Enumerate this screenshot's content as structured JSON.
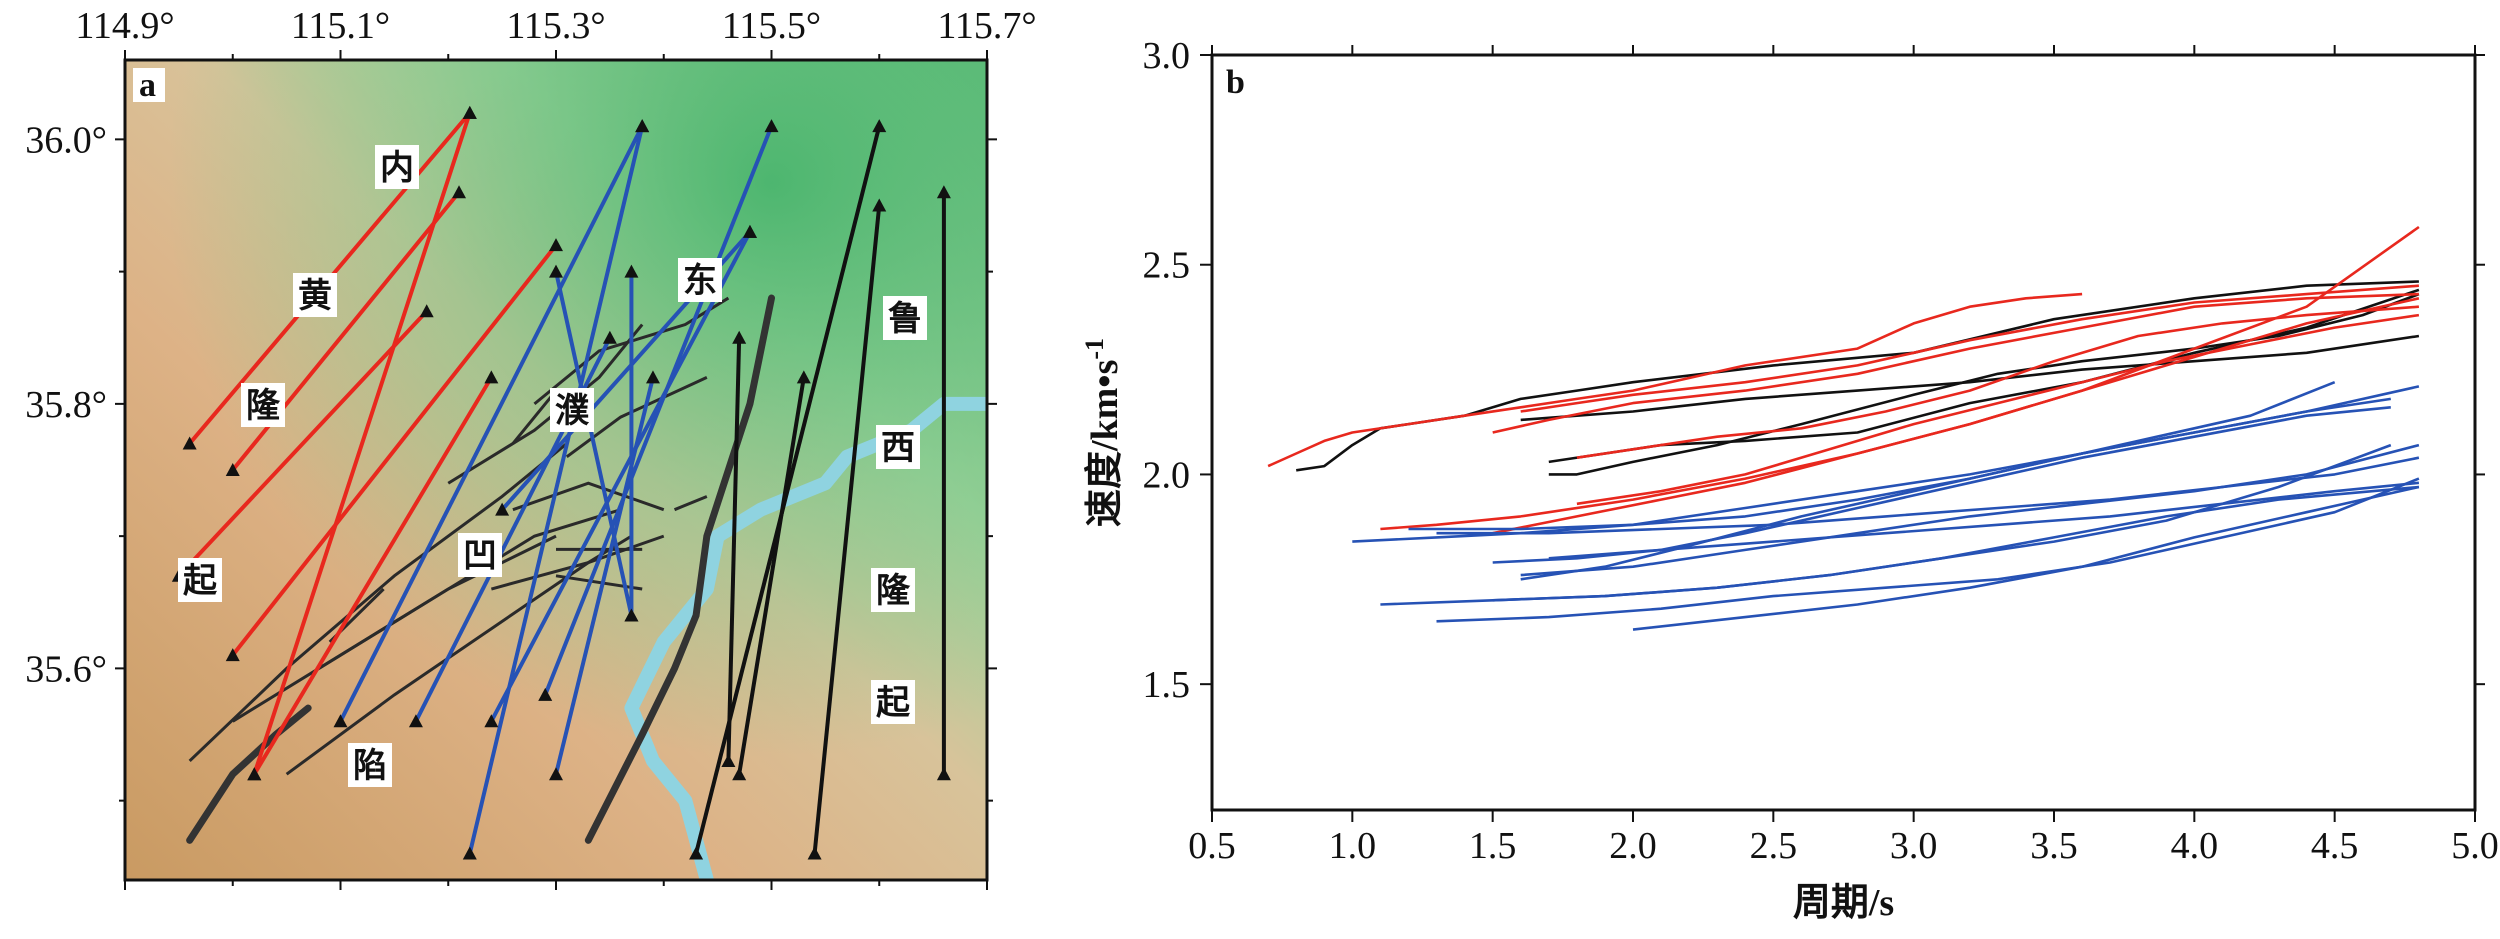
{
  "chart_data": [
    {
      "type": "map",
      "panel_label": "a",
      "x_ticks": [
        "114.9°",
        "115.1°",
        "115.3°",
        "115.5°",
        "115.7°"
      ],
      "y_ticks": [
        "36.0°",
        "35.8°",
        "35.6°"
      ],
      "xlim": [
        114.9,
        115.7
      ],
      "ylim": [
        35.44,
        36.06
      ],
      "region_labels": [
        "内",
        "黄",
        "隆",
        "起",
        "东",
        "濮",
        "凹",
        "陷",
        "鲁",
        "西",
        "隆",
        "起"
      ],
      "colors": {
        "red_paths": "#e8281e",
        "blue_paths": "#2652b5",
        "black_paths": "#111111",
        "faults": "#2a2a2a",
        "river": "#8fd3e0"
      },
      "paths": {
        "red": [
          [
            [
              114.96,
              35.77
            ],
            [
              115.22,
              36.02
            ]
          ],
          [
            [
              115.0,
              35.75
            ],
            [
              115.21,
              35.96
            ]
          ],
          [
            [
              114.95,
              35.67
            ],
            [
              115.18,
              35.87
            ]
          ],
          [
            [
              115.0,
              35.61
            ],
            [
              115.3,
              35.92
            ]
          ],
          [
            [
              115.02,
              35.52
            ],
            [
              115.22,
              36.02
            ]
          ],
          [
            [
              115.02,
              35.52
            ],
            [
              115.24,
              35.82
            ]
          ]
        ],
        "blue": [
          [
            [
              115.1,
              35.56
            ],
            [
              115.38,
              36.01
            ]
          ],
          [
            [
              115.17,
              35.56
            ],
            [
              115.35,
              35.85
            ]
          ],
          [
            [
              115.22,
              35.46
            ],
            [
              115.38,
              36.01
            ]
          ],
          [
            [
              115.24,
              35.56
            ],
            [
              115.48,
              35.93
            ]
          ],
          [
            [
              115.29,
              35.58
            ],
            [
              115.5,
              36.01
            ]
          ],
          [
            [
              115.3,
              35.9
            ],
            [
              115.37,
              35.64
            ]
          ],
          [
            [
              115.3,
              35.52
            ],
            [
              115.39,
              35.82
            ]
          ],
          [
            [
              115.37,
              35.64
            ],
            [
              115.37,
              35.9
            ]
          ],
          [
            [
              115.25,
              35.72
            ],
            [
              115.48,
              35.93
            ]
          ]
        ],
        "black": [
          [
            [
              115.43,
              35.46
            ],
            [
              115.6,
              36.01
            ]
          ],
          [
            [
              115.54,
              35.46
            ],
            [
              115.6,
              35.95
            ]
          ],
          [
            [
              115.47,
              35.52
            ],
            [
              115.53,
              35.82
            ]
          ],
          [
            [
              115.66,
              35.52
            ],
            [
              115.66,
              35.96
            ]
          ],
          [
            [
              115.46,
              35.53
            ],
            [
              115.47,
              35.85
            ]
          ]
        ]
      }
    },
    {
      "type": "line",
      "panel_label": "b",
      "xlabel": "周期/s",
      "ylabel": "速度/km•s",
      "ylabel_sup": "-1",
      "xlim": [
        0.5,
        5.0
      ],
      "ylim": [
        1.2,
        3.0
      ],
      "x_ticks": [
        "0.5",
        "1.0",
        "1.5",
        "2.0",
        "2.5",
        "3.0",
        "3.5",
        "4.0",
        "4.5",
        "5.0"
      ],
      "y_ticks": [
        "1.5",
        "2.0",
        "2.5",
        "3.0"
      ],
      "colors": {
        "black": "#111111",
        "red": "#e8281e",
        "blue": "#2652b5"
      },
      "series": [
        {
          "color": "black",
          "x": [
            0.8,
            0.9,
            1.0,
            1.1,
            1.2,
            1.4,
            1.6,
            1.8,
            2.0,
            2.5,
            3.0,
            3.5,
            4.0,
            4.4,
            4.8
          ],
          "values": [
            2.01,
            2.02,
            2.07,
            2.11,
            2.12,
            2.14,
            2.18,
            2.2,
            2.22,
            2.26,
            2.29,
            2.37,
            2.42,
            2.45,
            2.46
          ]
        },
        {
          "color": "black",
          "x": [
            1.7,
            1.8,
            2.0,
            2.3,
            2.6,
            3.0,
            3.3,
            3.6,
            4.0,
            4.3,
            4.6,
            4.8
          ],
          "values": [
            2.0,
            2.0,
            2.03,
            2.07,
            2.12,
            2.19,
            2.24,
            2.27,
            2.3,
            2.33,
            2.38,
            2.43
          ]
        },
        {
          "color": "black",
          "x": [
            1.6,
            1.8,
            2.0,
            2.4,
            2.8,
            3.2,
            3.6,
            4.0,
            4.4,
            4.8
          ],
          "values": [
            2.13,
            2.14,
            2.15,
            2.18,
            2.2,
            2.22,
            2.25,
            2.27,
            2.29,
            2.33
          ]
        },
        {
          "color": "black",
          "x": [
            1.7,
            1.9,
            2.1,
            2.4,
            2.8,
            3.2,
            3.6,
            4.0,
            4.4,
            4.8
          ],
          "values": [
            2.03,
            2.05,
            2.07,
            2.08,
            2.1,
            2.17,
            2.22,
            2.29,
            2.35,
            2.44
          ]
        },
        {
          "color": "red",
          "x": [
            0.7,
            0.8,
            0.9,
            1.0,
            1.2,
            1.4,
            1.6,
            1.8,
            2.0,
            2.4,
            2.8,
            3.0,
            3.2,
            3.4,
            3.6
          ],
          "values": [
            2.02,
            2.05,
            2.08,
            2.1,
            2.12,
            2.14,
            2.16,
            2.18,
            2.2,
            2.26,
            2.3,
            2.36,
            2.4,
            2.42,
            2.43
          ]
        },
        {
          "color": "red",
          "x": [
            1.5,
            1.7,
            2.0,
            2.4,
            2.8,
            3.2,
            3.6,
            4.0,
            4.4,
            4.8
          ],
          "values": [
            2.1,
            2.13,
            2.17,
            2.2,
            2.24,
            2.3,
            2.35,
            2.4,
            2.42,
            2.43
          ]
        },
        {
          "color": "red",
          "x": [
            1.6,
            1.8,
            2.0,
            2.4,
            2.8,
            3.2,
            3.6,
            4.0,
            4.4,
            4.8
          ],
          "values": [
            2.15,
            2.17,
            2.19,
            2.22,
            2.26,
            2.32,
            2.37,
            2.41,
            2.43,
            2.45
          ]
        },
        {
          "color": "red",
          "x": [
            1.8,
            2.0,
            2.3,
            2.6,
            2.9,
            3.2,
            3.5,
            3.8,
            4.1,
            4.4,
            4.8
          ],
          "values": [
            2.04,
            2.06,
            2.09,
            2.11,
            2.15,
            2.2,
            2.27,
            2.33,
            2.36,
            2.38,
            2.4
          ]
        },
        {
          "color": "red",
          "x": [
            1.1,
            1.3,
            1.6,
            2.0,
            2.4,
            2.8,
            3.2,
            3.6,
            4.0,
            4.4,
            4.8
          ],
          "values": [
            1.87,
            1.88,
            1.9,
            1.94,
            1.99,
            2.05,
            2.12,
            2.2,
            2.28,
            2.36,
            2.42
          ]
        },
        {
          "color": "red",
          "x": [
            1.5,
            1.8,
            2.1,
            2.4,
            2.8,
            3.2,
            3.6,
            4.0,
            4.4,
            4.8
          ],
          "values": [
            1.86,
            1.9,
            1.94,
            1.98,
            2.05,
            2.12,
            2.2,
            2.3,
            2.4,
            2.59
          ]
        },
        {
          "color": "red",
          "x": [
            1.8,
            2.1,
            2.4,
            2.7,
            3.0,
            3.3,
            3.6,
            3.9,
            4.2,
            4.5,
            4.8
          ],
          "values": [
            1.93,
            1.96,
            2.0,
            2.06,
            2.12,
            2.17,
            2.22,
            2.27,
            2.31,
            2.35,
            2.38
          ]
        },
        {
          "color": "blue",
          "x": [
            1.0,
            1.3,
            1.6,
            2.0,
            2.4,
            2.8,
            3.2,
            3.6,
            4.0,
            4.4,
            4.8
          ],
          "values": [
            1.84,
            1.85,
            1.86,
            1.88,
            1.92,
            1.96,
            2.0,
            2.05,
            2.1,
            2.15,
            2.21
          ]
        },
        {
          "color": "blue",
          "x": [
            1.5,
            1.8,
            2.1,
            2.4,
            2.8,
            3.2,
            3.6,
            4.0,
            4.4,
            4.7
          ],
          "values": [
            1.79,
            1.8,
            1.82,
            1.86,
            1.92,
            1.98,
            2.04,
            2.09,
            2.14,
            2.16
          ]
        },
        {
          "color": "blue",
          "x": [
            1.6,
            1.9,
            2.2,
            2.6,
            3.0,
            3.4,
            3.8,
            4.2,
            4.5
          ],
          "values": [
            1.75,
            1.78,
            1.83,
            1.9,
            1.96,
            2.02,
            2.08,
            2.14,
            2.22
          ]
        },
        {
          "color": "blue",
          "x": [
            1.2,
            1.6,
            2.0,
            2.4,
            2.8,
            3.2,
            3.6,
            4.0,
            4.4,
            4.7
          ],
          "values": [
            1.87,
            1.87,
            1.88,
            1.9,
            1.94,
            1.99,
            2.05,
            2.1,
            2.15,
            2.18
          ]
        },
        {
          "color": "blue",
          "x": [
            1.3,
            1.7,
            2.1,
            2.5,
            2.9,
            3.3,
            3.7,
            4.1,
            4.5,
            4.8
          ],
          "values": [
            1.86,
            1.86,
            1.87,
            1.88,
            1.9,
            1.92,
            1.94,
            1.97,
            2.0,
            2.04
          ]
        },
        {
          "color": "blue",
          "x": [
            1.6,
            2.0,
            2.4,
            2.8,
            3.2,
            3.6,
            4.0,
            4.4,
            4.8
          ],
          "values": [
            1.76,
            1.78,
            1.82,
            1.86,
            1.9,
            1.93,
            1.96,
            2.0,
            2.07
          ]
        },
        {
          "color": "blue",
          "x": [
            1.7,
            2.1,
            2.5,
            2.9,
            3.3,
            3.7,
            4.1,
            4.5,
            4.8
          ],
          "values": [
            1.8,
            1.82,
            1.84,
            1.86,
            1.88,
            1.9,
            1.93,
            1.96,
            1.98
          ]
        },
        {
          "color": "blue",
          "x": [
            1.5,
            1.9,
            2.3,
            2.7,
            3.1,
            3.5,
            3.9,
            4.3,
            4.7
          ],
          "values": [
            1.7,
            1.71,
            1.73,
            1.76,
            1.8,
            1.84,
            1.89,
            1.97,
            2.07
          ]
        },
        {
          "color": "blue",
          "x": [
            1.1,
            1.5,
            1.9,
            2.3,
            2.7,
            3.1,
            3.5,
            3.9,
            4.3,
            4.8
          ],
          "values": [
            1.69,
            1.7,
            1.71,
            1.73,
            1.76,
            1.8,
            1.85,
            1.9,
            1.94,
            1.97
          ]
        },
        {
          "color": "blue",
          "x": [
            1.3,
            1.7,
            2.1,
            2.5,
            2.9,
            3.3,
            3.7,
            4.1,
            4.5,
            4.8
          ],
          "values": [
            1.65,
            1.66,
            1.68,
            1.71,
            1.73,
            1.75,
            1.79,
            1.85,
            1.91,
            1.99
          ]
        },
        {
          "color": "blue",
          "x": [
            2.0,
            2.4,
            2.8,
            3.2,
            3.6,
            4.0,
            4.4,
            4.8
          ],
          "values": [
            1.63,
            1.66,
            1.69,
            1.73,
            1.78,
            1.85,
            1.91,
            1.97
          ]
        }
      ]
    }
  ]
}
